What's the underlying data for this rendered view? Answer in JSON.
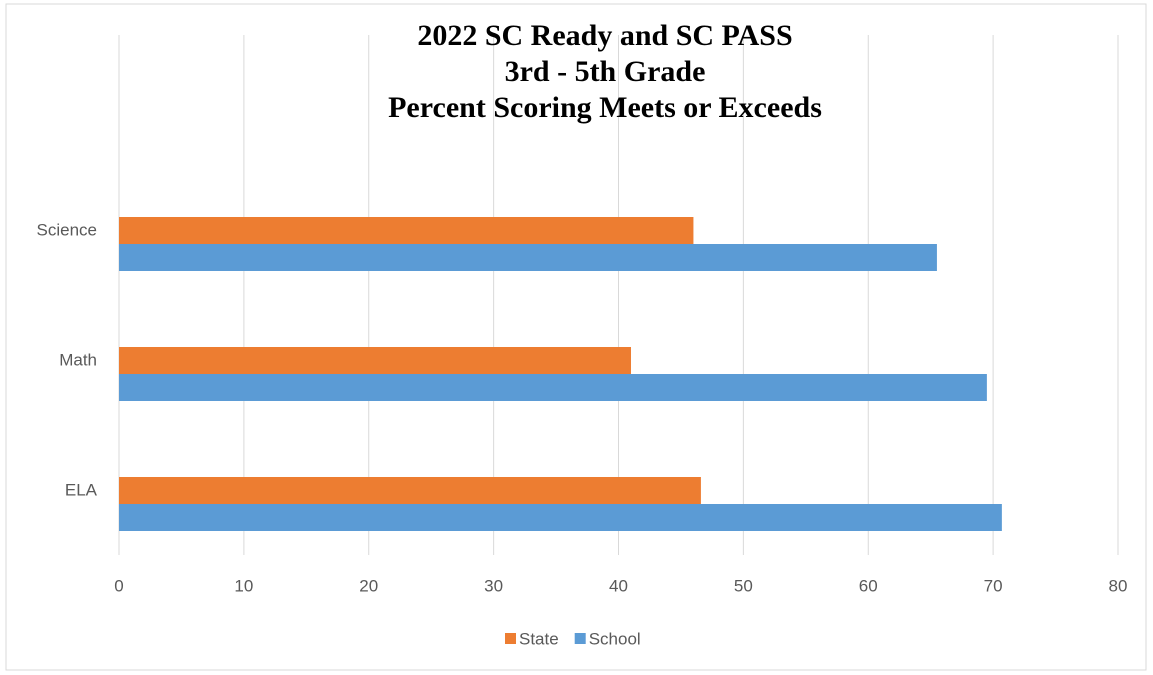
{
  "chart_data": {
    "type": "hbar",
    "title": [
      "2022 SC Ready and SC PASS",
      "3rd - 5th Grade",
      "Percent Scoring Meets or Exceeds"
    ],
    "categories": [
      "ELA",
      "Math",
      "Science"
    ],
    "series": [
      {
        "name": "State",
        "color": "#ed7d31",
        "values": [
          46.6,
          41,
          46
        ]
      },
      {
        "name": "School",
        "color": "#5b9bd5",
        "values": [
          70.7,
          69.5,
          65.5
        ]
      }
    ],
    "xlim": [
      0,
      80
    ],
    "xticks": [
      0,
      10,
      20,
      30,
      40,
      50,
      60,
      70,
      80
    ],
    "grid": true,
    "legend": "bottom"
  }
}
